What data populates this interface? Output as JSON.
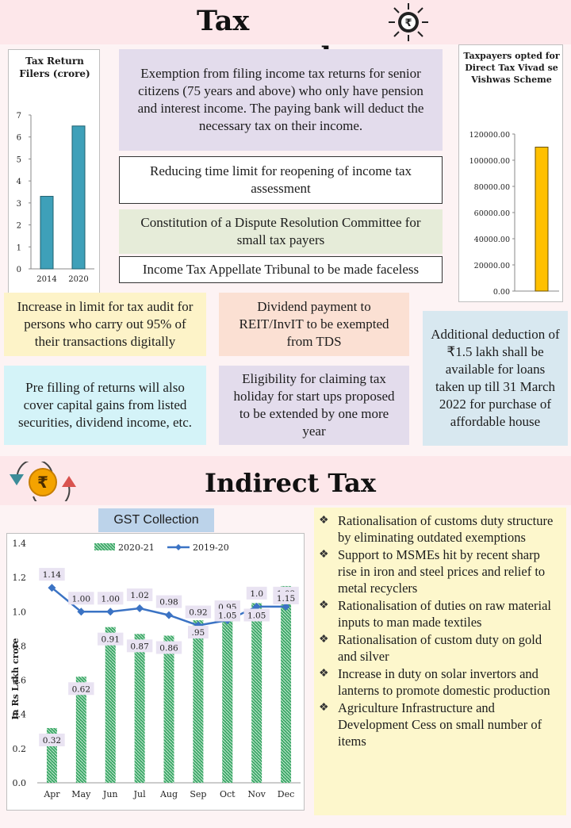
{
  "tax_proposals": {
    "title": "Tax proposals",
    "filers_chart": {
      "title": "Tax Return Filers (crore)",
      "type": "bar",
      "categories": [
        "2014",
        "2020"
      ],
      "values": [
        3.3,
        6.5
      ],
      "y_ticks": [
        "0",
        "1",
        "2",
        "3",
        "4",
        "5",
        "6",
        "7"
      ],
      "ylim": [
        0,
        7
      ],
      "color": "#3ea0b9"
    },
    "vivad_chart": {
      "title": "Taxpayers opted for Direct Tax Vivad se Vishwas Scheme",
      "type": "bar",
      "values": [
        110000
      ],
      "y_ticks": [
        "0.00",
        "20000.00",
        "40000.00",
        "60000.00",
        "80000.00",
        "100000.00",
        "120000.00"
      ],
      "ylim": [
        0,
        120000
      ],
      "color": "#ffc000"
    },
    "boxes": {
      "senior": "Exemption from filing income tax returns for senior citizens (75 years and above) who only have pension and interest income. The paying bank will deduct the necessary tax on their income.",
      "reopening": "Reducing time limit for reopening of income tax assessment",
      "dispute": "Constitution of a Dispute Resolution Committee for small tax payers",
      "tribunal": "Income Tax Appellate Tribunal to be made faceless",
      "audit": "Increase in limit for tax audit for persons who carry out 95% of their transactions digitally",
      "dividend": "Dividend payment to REIT/InvIT to be exempted from TDS",
      "deduction": "Additional deduction of ₹1.5 lakh shall be available for loans taken up till 31 March 2022 for purchase of affordable house",
      "prefill": "Pre filling of returns will also cover capital gains from listed securities, dividend income, etc.",
      "holiday": "Eligibility for claiming tax holiday for start ups proposed to be extended by one more year"
    }
  },
  "indirect_tax": {
    "title": "Indirect Tax",
    "chart_title": "GST Collection",
    "bullets": [
      "Rationalisation of customs duty structure by eliminating outdated exemptions",
      "Support to MSMEs hit by recent sharp rise in iron and steel prices and relief to metal recyclers",
      "Rationalisation of duties on raw material inputs to man made textiles",
      "Rationalisation of custom duty on gold and silver",
      "Increase in duty on solar invertors and lanterns to promote domestic production",
      "Agriculture Infrastructure and Development Cess on small number of items"
    ]
  },
  "chart_data": {
    "type": "bar",
    "title": "GST Collection",
    "xlabel": "",
    "ylabel": "In Rs Lakh crore",
    "categories": [
      "Apr",
      "May",
      "Jun",
      "Jul",
      "Aug",
      "Sep",
      "Oct",
      "Nov",
      "Dec"
    ],
    "series": [
      {
        "name": "2020-21",
        "type": "bar",
        "color": "#3fa96a",
        "values": [
          0.32,
          0.62,
          0.91,
          0.87,
          0.86,
          0.95,
          1.05,
          1.05,
          1.15
        ],
        "labels": [
          "0.32",
          "0.62",
          "0.91",
          "0.87",
          "0.86",
          ".95",
          "1.05",
          "1.05",
          "1.15"
        ]
      },
      {
        "name": "2019-20",
        "type": "line",
        "color": "#3b73c4",
        "values": [
          1.14,
          1.0,
          1.0,
          1.02,
          0.98,
          0.92,
          0.95,
          1.03,
          1.03
        ],
        "labels": [
          "1.14",
          "1.00",
          "1.00",
          "1.02",
          "0.98",
          "0.92",
          "0.95",
          "1.0",
          "1.03"
        ]
      }
    ],
    "y_ticks": [
      "0.0",
      "0.2",
      "0.4",
      "0.6",
      "0.8",
      "1.0",
      "1.2",
      "1.4"
    ],
    "ylim": [
      0,
      1.4
    ],
    "legend": "top"
  }
}
